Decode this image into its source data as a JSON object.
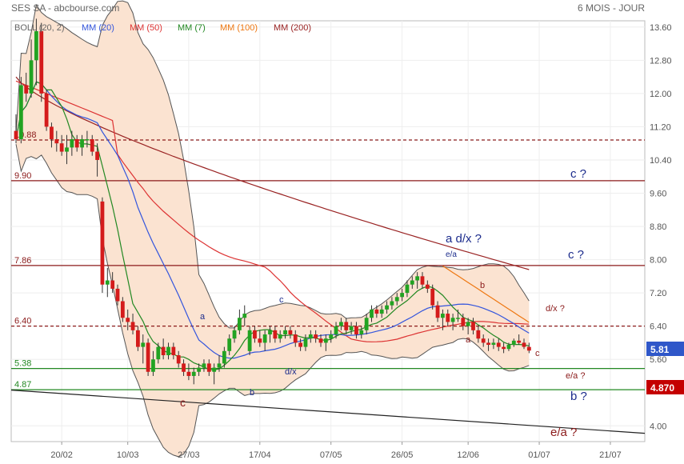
{
  "header": {
    "title": "SES SA - abcbourse.com",
    "period": "6 MOIS - JOUR"
  },
  "indicators": [
    {
      "label": "BOLL (20, 2)",
      "color": "#666666"
    },
    {
      "label": "MM (20)",
      "color": "#3355dd"
    },
    {
      "label": "MM (50)",
      "color": "#dd3333"
    },
    {
      "label": "MM (7)",
      "color": "#228822"
    },
    {
      "label": "MM (100)",
      "color": "#ee7711"
    },
    {
      "label": "MM (200)",
      "color": "#992222"
    }
  ],
  "chart_data": {
    "type": "candlestick",
    "ylim": [
      3.62,
      13.75
    ],
    "y_ticks": [
      "13.60",
      "12.80",
      "12.00",
      "11.20",
      "10.40",
      "9.60",
      "8.80",
      "8.00",
      "7.20",
      "6.40",
      "5.60",
      "4.00"
    ],
    "x_ticks": [
      "20/02",
      "10/03",
      "27/03",
      "17/04",
      "07/05",
      "26/05",
      "12/06",
      "01/07",
      "21/07"
    ],
    "x_tick_index": [
      9,
      22,
      34,
      48,
      62,
      76,
      89,
      103,
      117
    ],
    "last_price": "5.81",
    "last_price_color": "#2f57c9",
    "marker_price": "4.870",
    "marker_color": "#c40000",
    "candles": [
      [
        11.1,
        11.5,
        10.8,
        10.9
      ],
      [
        10.9,
        12.4,
        10.8,
        12.2
      ],
      [
        12.2,
        12.5,
        11.8,
        12.0
      ],
      [
        12.0,
        13.3,
        11.9,
        12.8
      ],
      [
        12.8,
        13.8,
        12.2,
        13.5
      ],
      [
        13.5,
        13.7,
        11.8,
        12.0
      ],
      [
        12.0,
        12.1,
        11.1,
        11.2
      ],
      [
        11.2,
        11.3,
        10.7,
        10.9
      ],
      [
        10.9,
        11.1,
        10.6,
        10.8
      ],
      [
        10.8,
        11.0,
        10.5,
        10.6
      ],
      [
        10.6,
        11.0,
        10.3,
        10.7
      ],
      [
        10.7,
        11.1,
        10.5,
        10.9
      ],
      [
        10.9,
        11.0,
        10.6,
        10.7
      ],
      [
        10.7,
        11.0,
        10.5,
        10.9
      ],
      [
        10.9,
        11.1,
        10.7,
        10.9
      ],
      [
        10.9,
        11.0,
        10.5,
        10.6
      ],
      [
        10.6,
        10.8,
        10.0,
        10.4
      ],
      [
        9.4,
        9.5,
        7.2,
        7.4
      ],
      [
        7.4,
        7.8,
        7.1,
        7.5
      ],
      [
        7.5,
        7.7,
        7.2,
        7.3
      ],
      [
        7.3,
        7.4,
        6.9,
        7.0
      ],
      [
        7.0,
        7.1,
        6.5,
        6.6
      ],
      [
        6.6,
        6.8,
        6.3,
        6.5
      ],
      [
        6.5,
        6.7,
        6.2,
        6.3
      ],
      [
        6.3,
        6.4,
        5.8,
        5.9
      ],
      [
        5.9,
        6.2,
        5.5,
        6.0
      ],
      [
        6.0,
        6.1,
        5.2,
        5.3
      ],
      [
        5.3,
        5.8,
        5.2,
        5.6
      ],
      [
        5.6,
        6.0,
        5.5,
        5.9
      ],
      [
        5.9,
        6.1,
        5.6,
        5.7
      ],
      [
        5.7,
        6.0,
        5.6,
        5.9
      ],
      [
        5.9,
        6.0,
        5.6,
        5.7
      ],
      [
        5.7,
        5.8,
        5.4,
        5.5
      ],
      [
        5.5,
        5.6,
        5.2,
        5.3
      ],
      [
        5.3,
        5.5,
        5.1,
        5.2
      ],
      [
        5.2,
        5.4,
        5.0,
        5.3
      ],
      [
        5.3,
        5.5,
        5.2,
        5.4
      ],
      [
        5.4,
        5.6,
        5.3,
        5.5
      ],
      [
        5.5,
        5.6,
        5.2,
        5.3
      ],
      [
        5.3,
        5.5,
        5.0,
        5.4
      ],
      [
        5.4,
        5.7,
        5.3,
        5.5
      ],
      [
        5.5,
        5.9,
        5.4,
        5.8
      ],
      [
        5.8,
        6.2,
        5.7,
        6.1
      ],
      [
        6.1,
        6.4,
        6.0,
        6.3
      ],
      [
        6.3,
        6.8,
        6.2,
        6.6
      ],
      [
        6.6,
        6.9,
        6.4,
        6.7
      ],
      [
        5.8,
        6.4,
        5.7,
        6.3
      ],
      [
        6.3,
        6.4,
        6.0,
        6.1
      ],
      [
        6.1,
        6.3,
        5.9,
        6.0
      ],
      [
        6.0,
        6.3,
        5.8,
        6.2
      ],
      [
        6.2,
        6.4,
        6.0,
        6.3
      ],
      [
        6.3,
        6.4,
        6.0,
        6.1
      ],
      [
        6.1,
        6.3,
        6.0,
        6.2
      ],
      [
        6.2,
        6.4,
        6.1,
        6.3
      ],
      [
        6.3,
        6.4,
        6.1,
        6.2
      ],
      [
        6.2,
        6.3,
        5.9,
        6.0
      ],
      [
        6.0,
        6.1,
        5.8,
        5.9
      ],
      [
        5.9,
        6.2,
        5.8,
        6.1
      ],
      [
        6.1,
        6.3,
        6.0,
        6.2
      ],
      [
        6.2,
        6.3,
        6.0,
        6.1
      ],
      [
        6.1,
        6.2,
        5.9,
        6.0
      ],
      [
        6.0,
        6.2,
        5.8,
        6.1
      ],
      [
        6.1,
        6.3,
        6.0,
        6.2
      ],
      [
        6.2,
        6.5,
        6.1,
        6.4
      ],
      [
        6.4,
        6.6,
        6.3,
        6.5
      ],
      [
        6.5,
        6.6,
        6.2,
        6.3
      ],
      [
        6.3,
        6.5,
        6.2,
        6.4
      ],
      [
        6.4,
        6.5,
        6.1,
        6.2
      ],
      [
        6.2,
        6.4,
        6.1,
        6.3
      ],
      [
        6.3,
        6.7,
        6.2,
        6.6
      ],
      [
        6.6,
        6.9,
        6.5,
        6.8
      ],
      [
        6.8,
        6.9,
        6.6,
        6.7
      ],
      [
        6.7,
        6.9,
        6.6,
        6.8
      ],
      [
        6.8,
        7.0,
        6.7,
        6.9
      ],
      [
        6.9,
        7.1,
        6.8,
        7.0
      ],
      [
        7.0,
        7.2,
        6.9,
        7.1
      ],
      [
        7.1,
        7.3,
        7.0,
        7.2
      ],
      [
        7.2,
        7.5,
        7.1,
        7.4
      ],
      [
        7.4,
        7.6,
        7.3,
        7.5
      ],
      [
        7.5,
        7.7,
        7.3,
        7.6
      ],
      [
        7.6,
        7.7,
        7.3,
        7.4
      ],
      [
        7.4,
        7.5,
        7.2,
        7.3
      ],
      [
        7.3,
        7.4,
        6.8,
        6.9
      ],
      [
        6.9,
        7.0,
        6.5,
        6.6
      ],
      [
        6.6,
        6.8,
        6.3,
        6.7
      ],
      [
        6.7,
        6.8,
        6.4,
        6.5
      ],
      [
        6.5,
        6.7,
        6.3,
        6.6
      ],
      [
        6.6,
        6.8,
        6.5,
        6.6
      ],
      [
        6.6,
        6.7,
        6.3,
        6.4
      ],
      [
        6.4,
        6.6,
        6.2,
        6.5
      ],
      [
        6.5,
        6.6,
        6.2,
        6.3
      ],
      [
        6.3,
        6.4,
        6.0,
        6.1
      ],
      [
        6.1,
        6.2,
        5.9,
        6.0
      ],
      [
        6.0,
        6.1,
        5.8,
        5.95
      ],
      [
        5.95,
        6.1,
        5.85,
        6.0
      ],
      [
        6.0,
        6.1,
        5.8,
        5.9
      ],
      [
        5.9,
        6.0,
        5.75,
        5.85
      ],
      [
        5.85,
        6.0,
        5.8,
        5.95
      ],
      [
        5.95,
        6.1,
        5.9,
        6.05
      ],
      [
        6.05,
        6.2,
        5.95,
        6.0
      ],
      [
        6.0,
        6.1,
        5.85,
        5.9
      ],
      [
        5.9,
        6.0,
        5.75,
        5.81
      ]
    ]
  },
  "levels": [
    {
      "label": "10.88",
      "value": 10.88,
      "color": "#8b1a1a",
      "dashed": true
    },
    {
      "label": "9.90",
      "value": 9.9,
      "color": "#8b1a1a",
      "dashed": false
    },
    {
      "label": "7.86",
      "value": 7.86,
      "color": "#8b1a1a",
      "dashed": false
    },
    {
      "label": "6.40",
      "value": 6.4,
      "color": "#8b1a1a",
      "dashed": true
    },
    {
      "label": "5.38",
      "value": 5.38,
      "color": "#228822",
      "dashed": false
    },
    {
      "label": "4.87",
      "value": 4.87,
      "color": "#228822",
      "dashed": false
    }
  ],
  "annotations": {
    "c_q_1": "c ?",
    "c_q_2": "c ?",
    "a_dx_q": "a d/x ?",
    "b_q": "b ?",
    "ea_q_big": "e/a ?",
    "ea_q_small": "e/a ?",
    "dx_q": "d/x ?",
    "ea": "e/a",
    "a1": "a",
    "b1": "b",
    "c1": "c",
    "c2": "c",
    "dx": "d/x",
    "b2": "b",
    "a2": "a",
    "c3": "c"
  }
}
